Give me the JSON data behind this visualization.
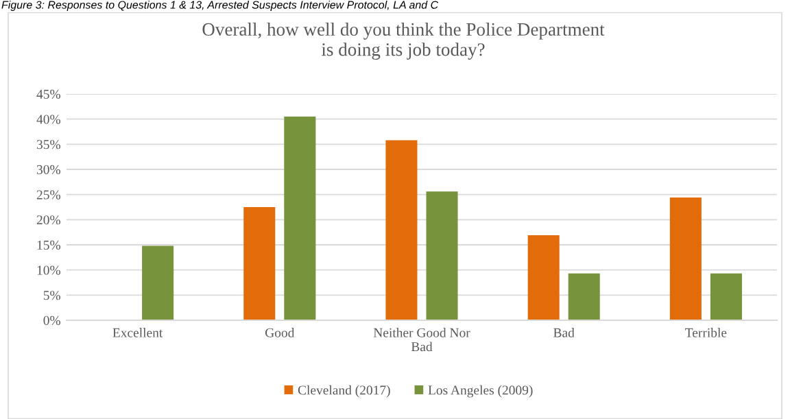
{
  "chart_data": {
    "type": "bar",
    "title": "Overall, how well do you think the Police Department\nis doing its job today?",
    "annotations": [
      "Figure 3: Responses to Questions 1 & 13, Arrested Suspects Interview Protocol, LA and C"
    ],
    "categories": [
      "Excellent",
      "Good",
      "Neither Good Nor\nBad",
      "Bad",
      "Terrible"
    ],
    "series": [
      {
        "name": "Cleveland (2017)",
        "color": "#e36c0a",
        "values": [
          null,
          22.5,
          35.8,
          16.9,
          24.4
        ]
      },
      {
        "name": "Los Angeles (2009)",
        "color": "#77933c",
        "values": [
          14.8,
          40.5,
          25.6,
          9.3,
          9.3
        ]
      }
    ],
    "ylim": [
      0,
      45
    ],
    "yticks": [
      {
        "value": 0,
        "label": "0%"
      },
      {
        "value": 5,
        "label": "5%"
      },
      {
        "value": 10,
        "label": "10%"
      },
      {
        "value": 15,
        "label": "15%"
      },
      {
        "value": 20,
        "label": "20%"
      },
      {
        "value": 25,
        "label": "25%"
      },
      {
        "value": 30,
        "label": "30%"
      },
      {
        "value": 35,
        "label": "35%"
      },
      {
        "value": 40,
        "label": "40%"
      },
      {
        "value": 45,
        "label": "45%"
      }
    ],
    "grid": "y",
    "legend": "bottom"
  }
}
